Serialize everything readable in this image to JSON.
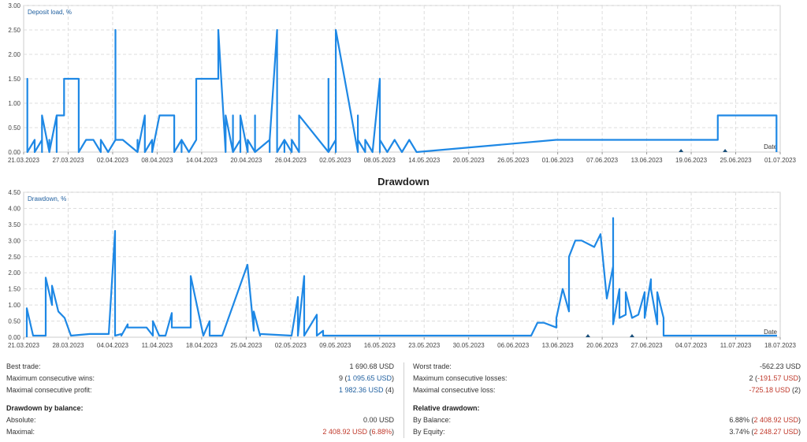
{
  "colors": {
    "line": "#1e88e5",
    "grid": "#dddddd",
    "axis": "#999999",
    "negative": "#c0392b",
    "accent": "#1f5f9f"
  },
  "chart_data": [
    {
      "type": "line",
      "title": "",
      "series_label": "Deposit load, %",
      "xlabel": "Date",
      "ylabel": "",
      "ylim": [
        0,
        3.0
      ],
      "yticks": [
        "0.00",
        "0.50",
        "1.00",
        "1.50",
        "2.00",
        "2.50",
        "3.00"
      ],
      "xlim": [
        "2023-03-21",
        "2023-07-01"
      ],
      "xticks": [
        "21.03.2023",
        "27.03.2023",
        "02.04.2023",
        "08.04.2023",
        "14.04.2023",
        "20.04.2023",
        "26.04.2023",
        "02.05.2023",
        "08.05.2023",
        "14.05.2023",
        "20.05.2023",
        "26.05.2023",
        "01.06.2023",
        "07.06.2023",
        "13.06.2023",
        "19.06.2023",
        "25.06.2023",
        "01.07.2023"
      ],
      "grid": true,
      "series": [
        {
          "x": [
            "2023-03-21",
            "2023-03-21",
            "2023-03-21",
            "2023-03-21",
            "2023-03-21",
            "2023-03-22",
            "2023-03-22",
            "2023-03-23",
            "2023-03-23",
            "2023-03-23",
            "2023-03-24",
            "2023-03-24",
            "2023-03-24",
            "2023-03-25",
            "2023-03-25",
            "2023-03-25",
            "2023-03-25",
            "2023-03-26",
            "2023-03-26",
            "2023-03-28",
            "2023-03-28",
            "2023-03-28",
            "2023-03-29",
            "2023-03-30",
            "2023-03-31",
            "2023-03-31",
            "2023-04-01",
            "2023-04-02",
            "2023-04-02",
            "2023-04-02",
            "2023-04-02",
            "2023-04-03",
            "2023-04-03",
            "2023-04-03",
            "2023-04-05",
            "2023-04-05",
            "2023-04-05",
            "2023-04-06",
            "2023-04-06",
            "2023-04-07",
            "2023-04-07",
            "2023-04-08",
            "2023-04-08",
            "2023-04-08",
            "2023-04-10",
            "2023-04-10",
            "2023-04-11",
            "2023-04-11",
            "2023-04-11",
            "2023-04-12",
            "2023-04-13",
            "2023-04-13",
            "2023-04-14",
            "2023-04-14",
            "2023-04-16",
            "2023-04-16",
            "2023-04-17",
            "2023-04-17",
            "2023-04-18",
            "2023-04-18",
            "2023-04-18",
            "2023-04-19",
            "2023-04-19",
            "2023-04-19",
            "2023-04-20",
            "2023-04-20",
            "2023-04-21",
            "2023-04-21",
            "2023-04-21",
            "2023-04-21",
            "2023-04-23",
            "2023-04-23",
            "2023-04-23",
            "2023-04-24",
            "2023-04-24",
            "2023-04-25",
            "2023-04-25",
            "2023-04-25",
            "2023-04-26",
            "2023-04-26",
            "2023-04-27",
            "2023-04-27",
            "2023-05-01",
            "2023-05-01",
            "2023-05-01",
            "2023-05-02",
            "2023-05-02",
            "2023-05-02",
            "2023-05-05",
            "2023-05-05",
            "2023-05-05",
            "2023-05-06",
            "2023-05-06",
            "2023-05-07",
            "2023-05-08",
            "2023-05-08",
            "2023-05-08",
            "2023-05-09",
            "2023-05-10",
            "2023-05-11",
            "2023-05-12",
            "2023-05-13",
            "2023-06-01",
            "2023-06-20",
            "2023-06-23",
            "2023-06-23",
            "2023-06-30",
            "2023-07-01",
            "2023-07-01"
          ],
          "y": [
            0,
            0.75,
            0,
            1.5,
            0,
            0.25,
            0,
            0.25,
            0,
            0.75,
            0,
            0.25,
            0,
            0.75,
            0,
            0.25,
            0.75,
            0.75,
            1.5,
            1.5,
            1.5,
            0,
            0.25,
            0.25,
            0,
            0.25,
            0,
            0.25,
            0.25,
            2.5,
            0.25,
            0.25,
            0.25,
            0.25,
            0,
            0.25,
            0,
            0.75,
            0,
            0.25,
            0,
            0.75,
            0.75,
            0.75,
            0.75,
            0,
            0.25,
            0,
            0.25,
            0,
            0.25,
            1.5,
            1.5,
            1.5,
            1.5,
            2.5,
            0,
            0.75,
            0,
            0.75,
            0,
            0.25,
            0,
            0.75,
            0,
            0.25,
            0,
            0.25,
            0.75,
            0,
            0.25,
            0,
            0.25,
            2.5,
            0,
            0.25,
            0,
            0.25,
            0,
            0.25,
            0,
            0.75,
            0,
            1.5,
            0,
            0.25,
            0,
            2.5,
            0,
            0.75,
            0.25,
            0,
            0.25,
            0,
            1.5,
            0,
            0.25,
            0,
            0.25,
            0,
            0.25,
            0,
            0.25,
            0.25,
            0.25,
            0.75,
            0.75,
            0.75,
            0
          ]
        }
      ],
      "markers_x": [
        "2023-06-18",
        "2023-06-24"
      ]
    },
    {
      "type": "line",
      "title": "Drawdown",
      "series_label": "Drawdown, %",
      "xlabel": "Date",
      "ylabel": "",
      "ylim": [
        0,
        4.5
      ],
      "yticks": [
        "0.00",
        "0.50",
        "1.00",
        "1.50",
        "2.00",
        "2.50",
        "3.00",
        "3.50",
        "4.00",
        "4.50"
      ],
      "xlim": [
        "2023-03-21",
        "2023-07-18"
      ],
      "xticks": [
        "21.03.2023",
        "28.03.2023",
        "04.04.2023",
        "11.04.2023",
        "18.04.2023",
        "25.04.2023",
        "02.05.2023",
        "09.05.2023",
        "16.05.2023",
        "23.05.2023",
        "30.05.2023",
        "06.06.2023",
        "13.06.2023",
        "20.06.2023",
        "27.06.2023",
        "04.07.2023",
        "11.07.2023",
        "18.07.2023"
      ],
      "grid": true,
      "series": [
        {
          "x": [
            "2023-03-21",
            "2023-03-21",
            "2023-03-22",
            "2023-03-24",
            "2023-03-24",
            "2023-03-25",
            "2023-03-25",
            "2023-03-26",
            "2023-03-27",
            "2023-03-28",
            "2023-03-31",
            "2023-04-02",
            "2023-04-03",
            "2023-04-04",
            "2023-04-04",
            "2023-04-05",
            "2023-04-05",
            "2023-04-06",
            "2023-04-06",
            "2023-04-09",
            "2023-04-10",
            "2023-04-10",
            "2023-04-11",
            "2023-04-12",
            "2023-04-13",
            "2023-04-13",
            "2023-04-16",
            "2023-04-16",
            "2023-04-18",
            "2023-04-19",
            "2023-04-19",
            "2023-04-20",
            "2023-04-21",
            "2023-04-25",
            "2023-04-26",
            "2023-04-26",
            "2023-04-27",
            "2023-04-27",
            "2023-05-02",
            "2023-05-03",
            "2023-05-03",
            "2023-05-04",
            "2023-05-04",
            "2023-05-06",
            "2023-05-06",
            "2023-05-07",
            "2023-05-07",
            "2023-05-08",
            "2023-05-09",
            "2023-05-10",
            "2023-05-10",
            "2023-06-09",
            "2023-06-10",
            "2023-06-11",
            "2023-06-13",
            "2023-06-13",
            "2023-06-14",
            "2023-06-15",
            "2023-06-15",
            "2023-06-16",
            "2023-06-17",
            "2023-06-19",
            "2023-06-20",
            "2023-06-21",
            "2023-06-22",
            "2023-06-22",
            "2023-06-22",
            "2023-06-23",
            "2023-06-23",
            "2023-06-24",
            "2023-06-24",
            "2023-06-25",
            "2023-06-26",
            "2023-06-27",
            "2023-06-27",
            "2023-06-28",
            "2023-06-28",
            "2023-06-29",
            "2023-06-29",
            "2023-06-30",
            "2023-06-30",
            "2023-07-18"
          ],
          "y": [
            0,
            0.9,
            0.05,
            0.05,
            1.85,
            1.0,
            1.6,
            0.8,
            0.6,
            0.05,
            0.1,
            0.1,
            0.1,
            3.3,
            0.05,
            0.1,
            0.05,
            0.4,
            0.3,
            0.3,
            0.05,
            0.5,
            0.05,
            0.05,
            0.75,
            0.3,
            0.3,
            1.9,
            0.05,
            0.5,
            0.05,
            0.05,
            0.05,
            2.25,
            0.2,
            0.8,
            0.05,
            0.1,
            0.05,
            1.25,
            0.05,
            1.9,
            0.05,
            0.7,
            0.05,
            0.2,
            0.05,
            0.05,
            0.05,
            0.05,
            0.05,
            0.05,
            0.45,
            0.45,
            0.3,
            0.6,
            1.5,
            0.8,
            2.5,
            3.0,
            3.0,
            2.8,
            3.2,
            1.2,
            2.2,
            3.7,
            0.4,
            1.5,
            0.6,
            0.7,
            1.4,
            0.6,
            0.7,
            1.4,
            0.6,
            1.8,
            1.5,
            0.4,
            1.4,
            0.6,
            0.05,
            0.05
          ]
        }
      ],
      "markers_x": [
        "2023-06-18",
        "2023-06-25"
      ]
    }
  ],
  "stats": {
    "left": {
      "best_trade": {
        "label": "Best trade:",
        "value": "1 690.68 USD"
      },
      "max_consecutive_wins": {
        "label": "Maximum consecutive wins:",
        "value_count": "9",
        "value_amount": "1 095.65 USD"
      },
      "maximal_consecutive_profit": {
        "label": "Maximal consecutive profit:",
        "value_amount": "1 982.36 USD",
        "value_count": "4"
      },
      "drawdown_by_balance_title": "Drawdown by balance:",
      "absolute": {
        "label": "Absolute:",
        "value": "0.00 USD"
      },
      "maximal": {
        "label": "Maximal:",
        "value_amount": "2 408.92 USD",
        "value_pct": "6.88%"
      }
    },
    "right": {
      "worst_trade": {
        "label": "Worst trade:",
        "value": "-562.23 USD"
      },
      "max_consecutive_losses": {
        "label": "Maximum consecutive losses:",
        "value_count": "2",
        "value_amount": "-191.57 USD"
      },
      "maximal_consecutive_loss": {
        "label": "Maximal consecutive loss:",
        "value_amount": "-725.18 USD",
        "value_count": "2"
      },
      "relative_drawdown_title": "Relative drawdown:",
      "by_balance": {
        "label": "By Balance:",
        "value_pct": "6.88%",
        "value_amount": "2 408.92 USD"
      },
      "by_equity": {
        "label": "By Equity:",
        "value_pct": "3.74%",
        "value_amount": "2 248.27 USD"
      }
    }
  }
}
